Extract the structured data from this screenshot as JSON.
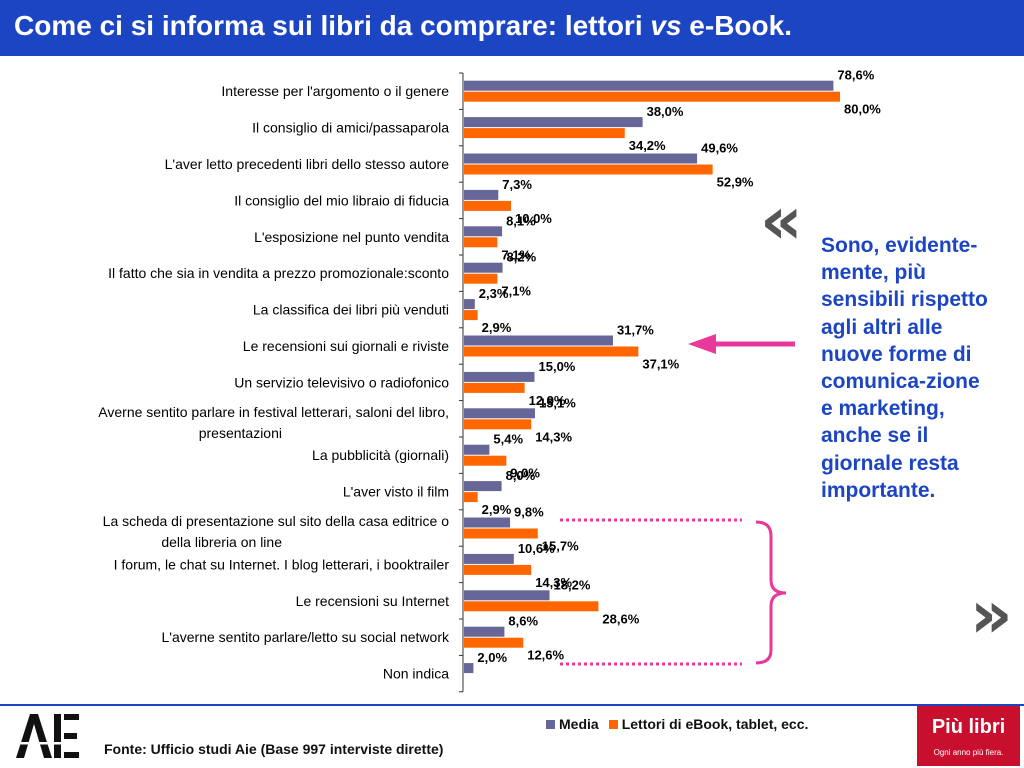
{
  "title": {
    "before": "Come ci si informa sui libri da comprare: lettori ",
    "italic": "vs",
    "after": " e-Book."
  },
  "colors": {
    "media": "#666699",
    "ebook": "#ff6600",
    "accent": "#1c45c4",
    "pink": "#e8389a"
  },
  "chart_data": {
    "type": "bar",
    "orientation": "horizontal",
    "categories": [
      "Interesse per l'argomento o il genere",
      "Il consiglio di amici/passaparola",
      "L'aver letto precedenti libri dello stesso autore",
      "Il consiglio del mio libraio di fiducia",
      "L'esposizione nel punto vendita",
      "Il fatto che sia in vendita a prezzo promozionale:sconto",
      "La classifica dei libri più venduti",
      "Le recensioni sui giornali e riviste",
      "Un servizio televisivo o radiofonico",
      [
        "Averne sentito parlare in festival letterari, saloni del libro,",
        "presentazioni"
      ],
      "La pubblicità (giornali)",
      "L'aver visto il film",
      [
        "La scheda di presentazione sul sito della casa editrice o",
        "della libreria on line"
      ],
      "I forum, le chat su Internet. I blog letterari, i booktrailer",
      "Le recensioni su Internet",
      "L'averne sentito parlare/letto su social network",
      "Non indica"
    ],
    "series": [
      {
        "name": "Media",
        "color": "#666699",
        "values": [
          78.6,
          38.0,
          49.6,
          7.3,
          8.1,
          8.2,
          2.3,
          31.7,
          15.0,
          15.1,
          5.4,
          8.0,
          9.8,
          10.6,
          18.2,
          8.6,
          2.0
        ],
        "labels": [
          "78,6%",
          "38,0%",
          "49,6%",
          "7,3%",
          "8,1%",
          "8,2%",
          "2,3%",
          "31,7%",
          "15,0%",
          "15,1%",
          "5,4%",
          "8,0%",
          "9,8%",
          "10,6%",
          "18,2%",
          "8,6%",
          "2,0%"
        ]
      },
      {
        "name": "Lettori di eBook, tablet, ecc.",
        "color": "#ff6600",
        "values": [
          80.0,
          34.2,
          52.9,
          10.0,
          7.1,
          7.1,
          2.9,
          37.1,
          12.9,
          14.3,
          9.0,
          2.9,
          15.7,
          14.3,
          28.6,
          12.6,
          null
        ],
        "labels": [
          "80,0%",
          "34,2%",
          "52,9%",
          "10,0%",
          "7,1%",
          "7,1%",
          "2,9%",
          "37,1%",
          "12,9%",
          "14,3%",
          "9,0%",
          "2,9%",
          "15,7%",
          "14,3%",
          "28,6%",
          "12,6%",
          null
        ]
      }
    ],
    "xlim": [
      0,
      80
    ],
    "legend_position": "bottom",
    "grid": false
  },
  "side_text": "Sono, evidente-mente, più sensibili rispetto agli altri alle nuove forme di comunica-zione e marketing, anche se il giornale resta importante.",
  "quote_open": "«",
  "quote_close": "»",
  "source": "Fonte: Ufficio studi Aie (Base 997 interviste dirette)",
  "logos": {
    "aie": "AIE",
    "piu_libri": "Più libri",
    "piu_libri_tag": "Ogni anno più fiera."
  }
}
